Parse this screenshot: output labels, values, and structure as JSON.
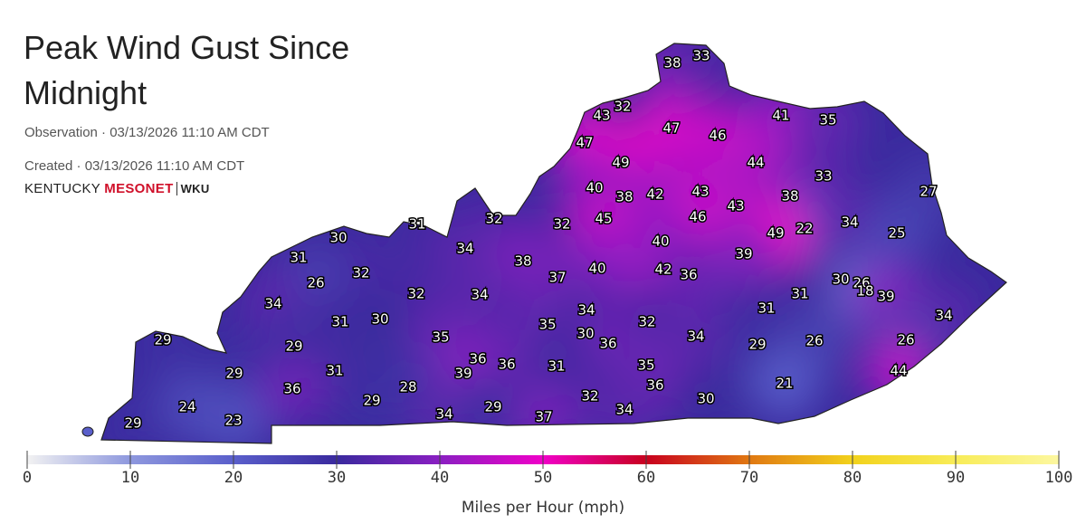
{
  "header": {
    "title": "Peak Wind Gust Since Midnight",
    "observation": "Observation · 03/13/2026 11:10 AM CDT",
    "created": "Created · 03/13/2026 11:10 AM CDT",
    "logo": {
      "left": "KENTUCKY",
      "middle": "MESONET",
      "right": "WKU"
    }
  },
  "map": {
    "stations": [
      38,
      33,
      43,
      32,
      41,
      35,
      47,
      46,
      47,
      49,
      44,
      33,
      40,
      38,
      42,
      43,
      38,
      27,
      43,
      31,
      32,
      32,
      45,
      46,
      22,
      34,
      49,
      25,
      30,
      34,
      40,
      39,
      31,
      38,
      42,
      36,
      40,
      32,
      26,
      37,
      30,
      26,
      18,
      39,
      34,
      32,
      34,
      31,
      34,
      31,
      34,
      31,
      30,
      35,
      32,
      30,
      36,
      34,
      35,
      29,
      29,
      29,
      26,
      26,
      36,
      36,
      31,
      35,
      29,
      31,
      39,
      44,
      36,
      28,
      36,
      21,
      29,
      32,
      30,
      24,
      34,
      29,
      34,
      23,
      37,
      29
    ]
  },
  "colorbar": {
    "range": [
      0,
      100
    ],
    "ticks": [
      0,
      10,
      20,
      30,
      40,
      50,
      60,
      70,
      80,
      90,
      100
    ],
    "colors": [
      "#f2f2f2",
      "#8e98de",
      "#5a5fcb",
      "#3a2a9e",
      "#8a1fc2",
      "#f000c8",
      "#c8001e",
      "#e07812",
      "#f2d21c",
      "#f8ec58",
      "#fcf7a0"
    ],
    "label": "Miles per Hour (mph)"
  }
}
